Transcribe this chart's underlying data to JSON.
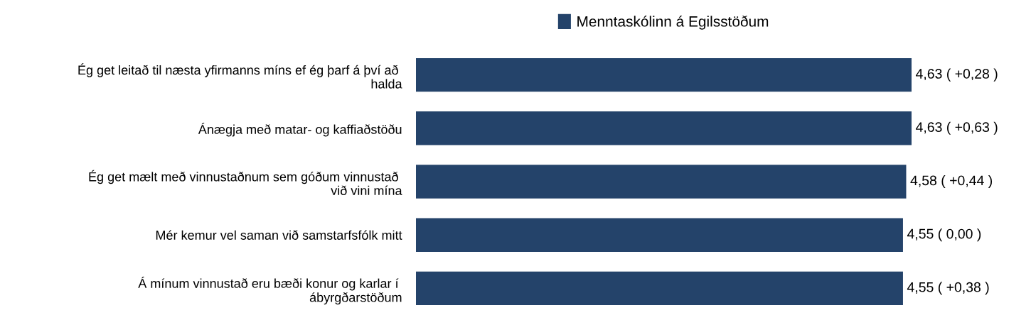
{
  "chart_data": {
    "type": "bar",
    "orientation": "horizontal",
    "legend": "top",
    "categories": [
      "Ég get leitað til næsta yfirmanns míns ef ég þarf á því að \nhalda",
      "Ánægja með matar- og kaffiaðstöðu",
      "Ég get mælt með vinnustaðnum sem góðum vinnustað \nvið vini mína",
      "Mér kemur vel saman við samstarfsfólk mitt",
      "Á mínum vinnustað eru bæði konur og karlar í \nábyrgðarstöðum"
    ],
    "series": [
      {
        "name": "Menntaskólinn á Egilsstöðum",
        "color": "#24436a",
        "values": [
          4.63,
          4.63,
          4.58,
          4.55,
          4.55
        ],
        "value_labels": [
          "4,63 ( +0,28 )",
          "4,63 ( +0,63 )",
          "4,58 ( +0,44 )",
          "4,55 ( 0,00 )",
          "4,55 ( +0,38 )"
        ]
      }
    ]
  }
}
